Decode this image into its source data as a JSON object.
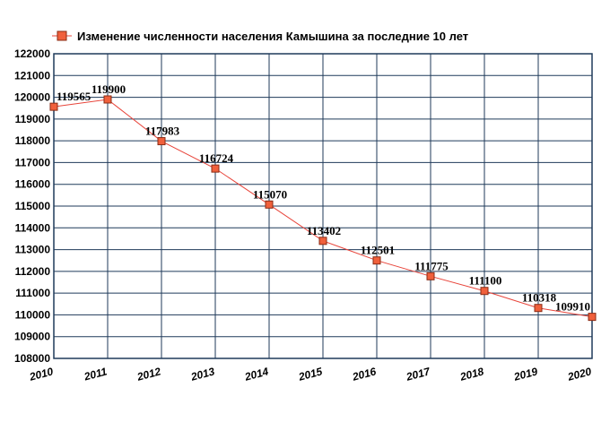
{
  "chart_data": {
    "type": "line",
    "legend": "Изменение численности населения Камышина за последние 10 лет",
    "legend_position": "top-left",
    "grid": true,
    "colors": {
      "line": "#e8443a",
      "marker_fill": "#f0603c",
      "marker_stroke": "#8a2b14",
      "grid": "#1f3a5a",
      "plot_border": "#1f3a5a"
    },
    "x": [
      2010,
      2011,
      2012,
      2013,
      2014,
      2015,
      2016,
      2017,
      2018,
      2019,
      2020
    ],
    "x_tick_labels": [
      "2010",
      "2011",
      "2012",
      "2013",
      "2014",
      "2015",
      "2016",
      "2017",
      "2018",
      "2019",
      "2020"
    ],
    "xlim": [
      2010,
      2020
    ],
    "y_tick_labels": [
      "108000",
      "109000",
      "110000",
      "111000",
      "112000",
      "113000",
      "114000",
      "115000",
      "116000",
      "117000",
      "118000",
      "119000",
      "120000",
      "121000",
      "122000"
    ],
    "ylim": [
      108000,
      122000
    ],
    "y_tick_step": 1000,
    "series": [
      {
        "values": [
          119565,
          119900,
          117983,
          116724,
          115070,
          113402,
          112501,
          111775,
          111100,
          110318,
          109910
        ],
        "labels": [
          "119565",
          "119900",
          "117983",
          "116724",
          "115070",
          "113402",
          "112501",
          "111775",
          "111100",
          "110318",
          "109910"
        ]
      }
    ]
  }
}
